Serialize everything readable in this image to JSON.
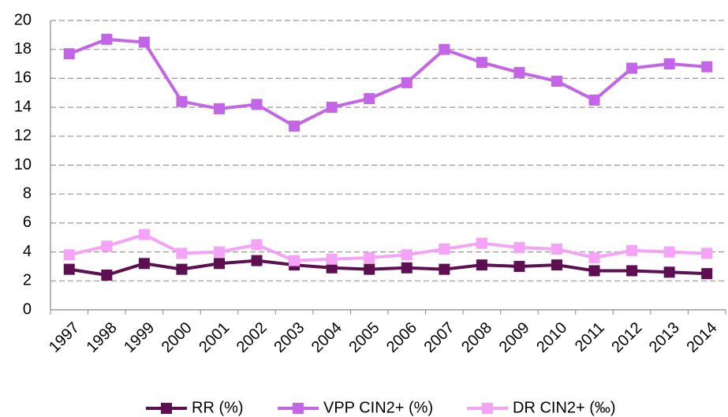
{
  "chart_data": {
    "type": "line",
    "categories": [
      "1997",
      "1998",
      "1999",
      "2000",
      "2001",
      "2002",
      "2003",
      "2004",
      "2005",
      "2006",
      "2007",
      "2008",
      "2009",
      "2010",
      "2011",
      "2012",
      "2013",
      "2014"
    ],
    "series": [
      {
        "name": "RR (%)",
        "color": "#5e0f52",
        "values": [
          2.8,
          2.4,
          3.2,
          2.8,
          3.2,
          3.4,
          3.1,
          2.9,
          2.8,
          2.9,
          2.8,
          3.1,
          3.0,
          3.1,
          2.7,
          2.7,
          2.6,
          2.5
        ]
      },
      {
        "name": "VPP CIN2+ (%)",
        "color": "#c465e8",
        "values": [
          17.7,
          18.7,
          18.5,
          14.4,
          13.9,
          14.2,
          12.7,
          14.0,
          14.6,
          15.7,
          18.0,
          17.1,
          16.4,
          15.8,
          14.5,
          16.7,
          17.0,
          16.8
        ]
      },
      {
        "name": "DR CIN2+ (‰)",
        "color": "#f4a3f7",
        "values": [
          3.8,
          4.4,
          5.2,
          3.9,
          4.0,
          4.5,
          3.4,
          3.5,
          3.6,
          3.8,
          4.2,
          4.6,
          4.3,
          4.2,
          3.6,
          4.1,
          4.0,
          3.9
        ]
      }
    ],
    "ylim": [
      0,
      20
    ],
    "yticks": [
      0,
      2,
      4,
      6,
      8,
      10,
      12,
      14,
      16,
      18,
      20
    ],
    "grid": true,
    "legend": "bottom"
  }
}
